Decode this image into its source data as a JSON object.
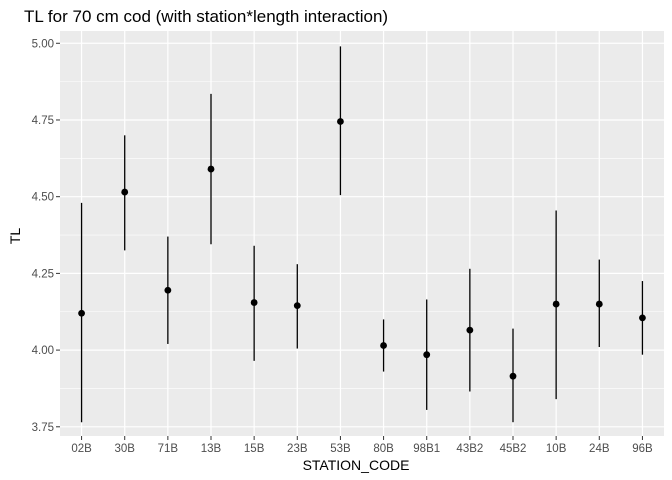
{
  "chart_data": {
    "type": "pointrange",
    "title": "TL for 70 cm cod (with station*length interaction)",
    "xlabel": "STATION_CODE",
    "ylabel": "TL",
    "ylim": [
      3.72,
      5.04
    ],
    "yticks": [
      "3.75",
      "4.00",
      "4.25",
      "4.50",
      "4.75",
      "5.00"
    ],
    "categories": [
      "02B",
      "30B",
      "71B",
      "13B",
      "15B",
      "23B",
      "53B",
      "80B",
      "98B1",
      "43B2",
      "45B2",
      "10B",
      "24B",
      "96B"
    ],
    "values": [
      4.12,
      4.515,
      4.195,
      4.59,
      4.155,
      4.145,
      4.745,
      4.015,
      3.985,
      4.065,
      3.915,
      4.15,
      4.15,
      4.105
    ],
    "lower": [
      3.765,
      4.325,
      4.02,
      4.345,
      3.965,
      4.005,
      4.505,
      3.93,
      3.805,
      3.865,
      3.765,
      3.84,
      4.01,
      3.985
    ],
    "upper": [
      4.48,
      4.7,
      4.37,
      4.835,
      4.34,
      4.28,
      4.99,
      4.1,
      4.165,
      4.265,
      4.07,
      4.455,
      4.295,
      4.225
    ],
    "panel_background": "#ebebeb",
    "grid_color": "#ffffff",
    "mark_color": "#000000"
  }
}
